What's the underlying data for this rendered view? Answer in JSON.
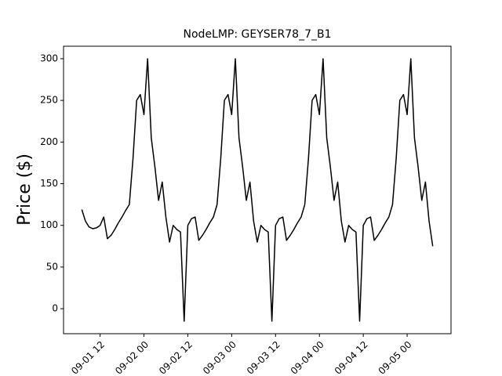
{
  "chart_data": {
    "type": "line",
    "title": "NodeLMP: GEYSER78_7_B1",
    "y_label": "Price ($)",
    "x": [
      "09-01 07",
      "09-01 08",
      "09-01 09",
      "09-01 10",
      "09-01 11",
      "09-01 12",
      "09-01 13",
      "09-01 14",
      "09-01 15",
      "09-01 16",
      "09-01 17",
      "09-01 18",
      "09-01 19",
      "09-01 20",
      "09-01 21",
      "09-01 22",
      "09-01 23",
      "09-02 00",
      "09-02 01",
      "09-02 02",
      "09-02 03",
      "09-02 04",
      "09-02 05",
      "09-02 06",
      "09-02 07",
      "09-02 08",
      "09-02 09",
      "09-02 10",
      "09-02 11",
      "09-02 12",
      "09-02 13",
      "09-02 14",
      "09-02 15",
      "09-02 16",
      "09-02 17",
      "09-02 18",
      "09-02 19",
      "09-02 20",
      "09-02 21",
      "09-02 22",
      "09-02 23",
      "09-03 00",
      "09-03 01",
      "09-03 02",
      "09-03 03",
      "09-03 04",
      "09-03 05",
      "09-03 06",
      "09-03 07",
      "09-03 08",
      "09-03 09",
      "09-03 10",
      "09-03 11",
      "09-03 12",
      "09-03 13",
      "09-03 14",
      "09-03 15",
      "09-03 16",
      "09-03 17",
      "09-03 18",
      "09-03 19",
      "09-03 20",
      "09-03 21",
      "09-03 22",
      "09-03 23",
      "09-04 00",
      "09-04 01",
      "09-04 02",
      "09-04 03",
      "09-04 04",
      "09-04 05",
      "09-04 06",
      "09-04 07",
      "09-04 08",
      "09-04 09",
      "09-04 10",
      "09-04 11",
      "09-04 12",
      "09-04 13",
      "09-04 14",
      "09-04 15",
      "09-04 16",
      "09-04 17",
      "09-04 18",
      "09-04 19",
      "09-04 20",
      "09-04 21",
      "09-04 22",
      "09-04 23",
      "09-05 00",
      "09-05 01",
      "09-05 02",
      "09-05 03",
      "09-05 04",
      "09-05 05",
      "09-05 06",
      "09-05 07"
    ],
    "values": [
      119,
      105,
      98,
      96,
      97,
      100,
      110,
      84,
      88,
      95,
      103,
      110,
      118,
      125,
      180,
      250,
      257,
      233,
      300,
      205,
      170,
      130,
      152,
      110,
      80,
      100,
      95,
      92,
      -15,
      100,
      108,
      110,
      82,
      88,
      95,
      103,
      110,
      125,
      180,
      250,
      257,
      233,
      300,
      205,
      170,
      130,
      152,
      105,
      80,
      100,
      95,
      92,
      -15,
      100,
      108,
      110,
      82,
      88,
      95,
      103,
      110,
      125,
      180,
      250,
      257,
      233,
      300,
      205,
      170,
      130,
      152,
      105,
      80,
      100,
      95,
      92,
      -15,
      100,
      108,
      110,
      82,
      88,
      95,
      103,
      110,
      125,
      180,
      250,
      257,
      233,
      300,
      205,
      170,
      130,
      152,
      105,
      75
    ],
    "color": "#000000",
    "xlim": [
      "09-01 02",
      "09-05 12"
    ],
    "xticks": [
      "09-01 12",
      "09-02 00",
      "09-02 12",
      "09-03 00",
      "09-03 12",
      "09-04 00",
      "09-04 12",
      "09-05 00"
    ],
    "ylim": [
      -30,
      315
    ],
    "yticks": [
      0,
      50,
      100,
      150,
      200,
      250,
      300
    ]
  }
}
